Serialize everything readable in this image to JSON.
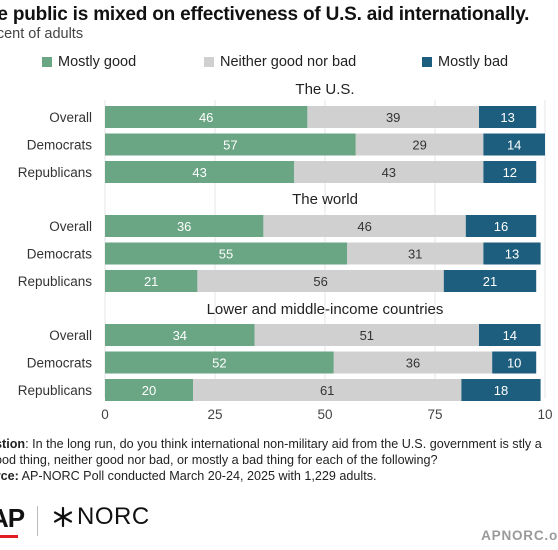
{
  "title": "he public is mixed on effectiveness of U.S. aid internationally.",
  "subtitle": "rcent of adults",
  "colors": {
    "mostly_good": "#6aa584",
    "neither": "#d0d0d0",
    "mostly_bad": "#1d5e7e"
  },
  "chart_data": {
    "type": "bar",
    "orientation": "horizontal",
    "stacked": true,
    "legend_position": "top",
    "grid": true,
    "xlim": [
      0,
      100
    ],
    "x_ticks": [
      "0",
      "25",
      "50",
      "75",
      "10"
    ],
    "series": [
      {
        "name": "Mostly good",
        "color": "#6aa584"
      },
      {
        "name": "Neither good nor bad",
        "color": "#d0d0d0"
      },
      {
        "name": "Mostly bad",
        "color": "#1d5e7e"
      }
    ],
    "panels": [
      {
        "title": "The U.S.",
        "rows": [
          {
            "label": "Overall",
            "values": [
              46,
              39,
              13
            ]
          },
          {
            "label": "Democrats",
            "values": [
              57,
              29,
              14
            ]
          },
          {
            "label": "Republicans",
            "values": [
              43,
              43,
              12
            ]
          }
        ]
      },
      {
        "title": "The world",
        "rows": [
          {
            "label": "Overall",
            "values": [
              36,
              46,
              16
            ]
          },
          {
            "label": "Democrats",
            "values": [
              55,
              31,
              13
            ]
          },
          {
            "label": "Republicans",
            "values": [
              21,
              56,
              21
            ]
          }
        ]
      },
      {
        "title": "Lower and middle-income countries",
        "rows": [
          {
            "label": "Overall",
            "values": [
              34,
              51,
              14
            ]
          },
          {
            "label": "Democrats",
            "values": [
              52,
              36,
              10
            ]
          },
          {
            "label": "Republicans",
            "values": [
              20,
              61,
              18
            ]
          }
        ]
      }
    ]
  },
  "notes": {
    "question_label": "estion",
    "question_text": ": In the long run, do you think international non-military aid from the U.S. government is stly a good thing, neither good nor bad, or mostly a bad thing for each of the following?",
    "source_label": "urce:",
    "source_text": " AP-NORC Poll conducted March 20-24, 2025 with 1,229 adults."
  },
  "footer": {
    "ap_logo": "AP",
    "norc_logo": "NORC",
    "site": "APNORC.o"
  }
}
